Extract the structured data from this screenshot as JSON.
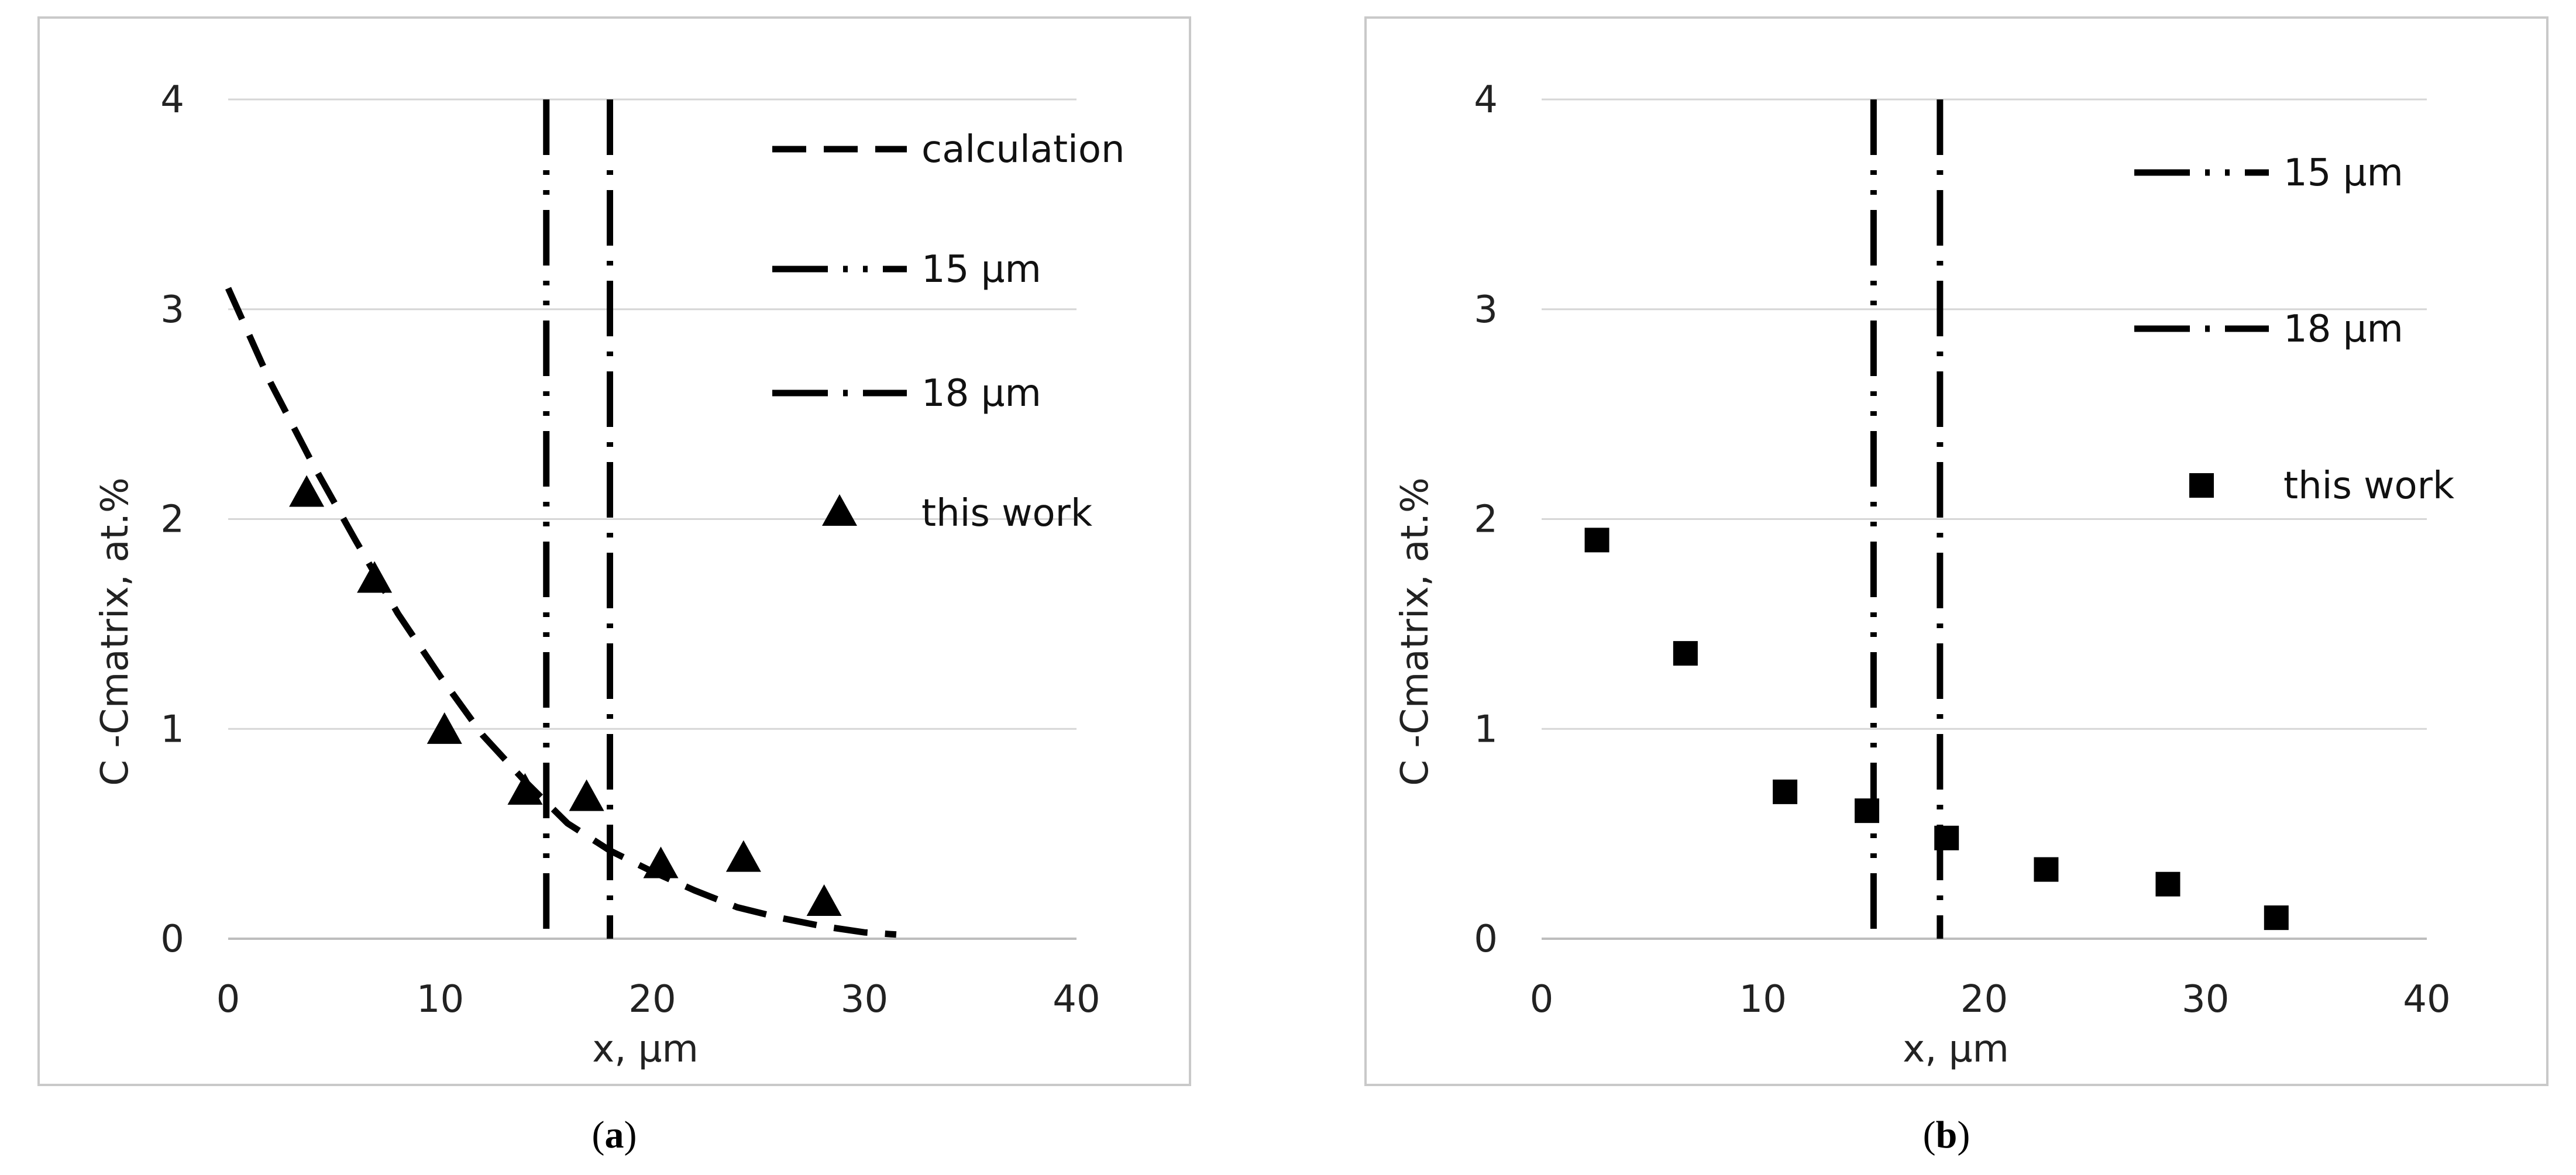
{
  "chart_data": [
    {
      "type": "line",
      "caption_letter": "a",
      "xlabel": "x, µm",
      "ylabel": "C -Cmatrix, at.%",
      "xlim": [
        0,
        40
      ],
      "ylim": [
        0,
        4
      ],
      "xticks": [
        0,
        10,
        20,
        30,
        40
      ],
      "yticks": [
        0,
        1,
        2,
        3,
        4
      ],
      "grid": "horizontal",
      "legend_position": "top-right",
      "series": [
        {
          "name": "calculation",
          "style": "dashed",
          "x": [
            0,
            2,
            4,
            6,
            8,
            10,
            12,
            14,
            16,
            18,
            20,
            22,
            24,
            26,
            28,
            30,
            31.5
          ],
          "y": [
            3.1,
            2.65,
            2.26,
            1.9,
            1.55,
            1.25,
            0.97,
            0.75,
            0.55,
            0.42,
            0.32,
            0.23,
            0.15,
            0.1,
            0.06,
            0.03,
            0.02
          ]
        },
        {
          "name": "15 µm",
          "style": "dash-dot-dot",
          "vertical_at_x": 15
        },
        {
          "name": "18 µm",
          "style": "dash-dot",
          "vertical_at_x": 18
        },
        {
          "name": "this work",
          "style": "markers-triangle",
          "x": [
            3.7,
            6.9,
            10.2,
            14.0,
            16.9,
            20.4,
            24.3,
            28.1
          ],
          "y": [
            2.12,
            1.71,
            0.99,
            0.7,
            0.67,
            0.35,
            0.38,
            0.17
          ]
        }
      ]
    },
    {
      "type": "scatter",
      "caption_letter": "b",
      "xlabel": "x, µm",
      "ylabel": "C -Cmatrix, at.%",
      "xlim": [
        0,
        40
      ],
      "ylim": [
        0,
        4
      ],
      "xticks": [
        0,
        10,
        20,
        30,
        40
      ],
      "yticks": [
        0,
        1,
        2,
        3,
        4
      ],
      "grid": "horizontal",
      "legend_position": "top-right",
      "series": [
        {
          "name": "15 µm",
          "style": "dash-dot-dot",
          "vertical_at_x": 15
        },
        {
          "name": "18 µm",
          "style": "dash-dot",
          "vertical_at_x": 18
        },
        {
          "name": "this work",
          "style": "markers-square",
          "x": [
            2.5,
            6.5,
            11.0,
            14.7,
            18.3,
            22.8,
            28.3,
            33.2
          ],
          "y": [
            1.9,
            1.36,
            0.7,
            0.61,
            0.48,
            0.33,
            0.26,
            0.1
          ]
        }
      ]
    }
  ]
}
